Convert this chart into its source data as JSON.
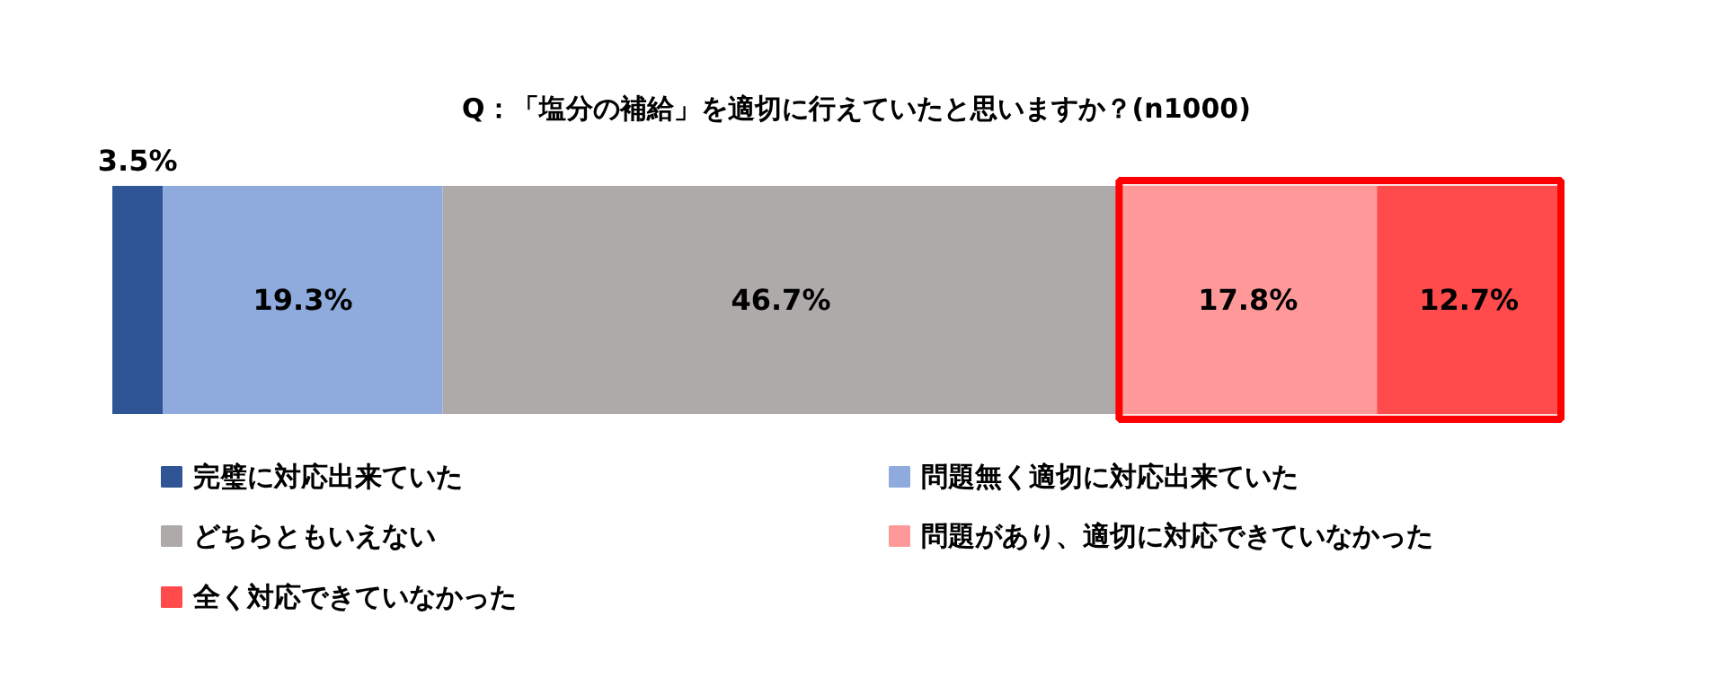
{
  "chart_data": {
    "type": "bar",
    "orientation": "horizontal",
    "stacked": true,
    "title": "Q：「塩分の補給」を適切に行えていたと思いますか？(n1000)",
    "categories": [
      null
    ],
    "legend": "bottom",
    "tick_labels": false,
    "grid": false,
    "series": [
      {
        "name": "完璧に対応出来ていた",
        "color": "#2f5597",
        "values": [
          3.5
        ],
        "value_labels": [
          "3.5%"
        ]
      },
      {
        "name": "問題無く適切に対応出来ていた",
        "color": "#8faadc",
        "values": [
          19.3
        ],
        "value_labels": [
          "19.3%"
        ]
      },
      {
        "name": "どちらともいえない",
        "color": "#aeaaaa",
        "values": [
          46.7
        ],
        "value_labels": [
          "46.7%"
        ]
      },
      {
        "name": "問題があり、適切に対応できていなかった",
        "color": "#ff9999",
        "values": [
          17.8
        ],
        "value_labels": [
          "17.8%"
        ]
      },
      {
        "name": "全く対応できていなかった",
        "color": "#ff4b4b",
        "values": [
          12.7
        ],
        "value_labels": [
          "12.7%"
        ]
      }
    ],
    "bands": [
      {
        "axis": "x",
        "from": 69.5,
        "to": 100,
        "color": "#ff0000"
      }
    ]
  }
}
